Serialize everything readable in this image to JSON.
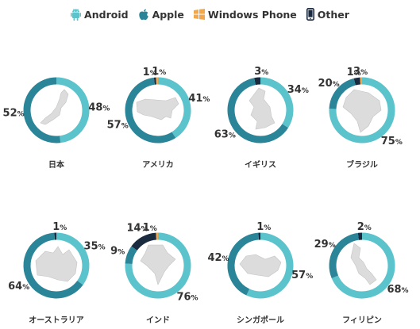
{
  "legend": [
    {
      "name": "Android",
      "color": "#5bc3cc",
      "icon": "android-icon"
    },
    {
      "name": "Apple",
      "color": "#2a8599",
      "icon": "apple-icon"
    },
    {
      "name": "Windows Phone",
      "color": "#f2a74b",
      "icon": "windows-icon"
    },
    {
      "name": "Other",
      "color": "#1a2a3f",
      "icon": "phone-icon"
    }
  ],
  "chart_data": {
    "type": "pie",
    "variant": "donut",
    "series_names": [
      "Android",
      "Apple",
      "Windows Phone",
      "Other"
    ],
    "colors": [
      "#5bc3cc",
      "#2a8599",
      "#f2a74b",
      "#1a2a3f"
    ],
    "charts": [
      {
        "country": "日本",
        "values": [
          48,
          52,
          0,
          0
        ],
        "labels": [
          "48",
          "52",
          "",
          ""
        ]
      },
      {
        "country": "アメリカ",
        "values": [
          41,
          57,
          1,
          1
        ],
        "labels": [
          "41",
          "57",
          "1",
          "1"
        ]
      },
      {
        "country": "イギリス",
        "values": [
          34,
          63,
          0,
          3
        ],
        "labels": [
          "34",
          "63",
          "",
          "3"
        ]
      },
      {
        "country": "ブラジル",
        "values": [
          75,
          20,
          1,
          3
        ],
        "labels": [
          "75",
          "20",
          "1",
          "3"
        ]
      },
      {
        "country": "オーストラリア",
        "values": [
          35,
          64,
          0,
          1
        ],
        "labels": [
          "35",
          "64",
          "",
          "1"
        ]
      },
      {
        "country": "インド",
        "values": [
          76,
          9,
          1,
          14
        ],
        "labels": [
          "76",
          "9",
          "1",
          "14"
        ]
      },
      {
        "country": "シンガポール",
        "values": [
          57,
          42,
          0,
          1
        ],
        "labels": [
          "57",
          "42",
          "",
          "1"
        ]
      },
      {
        "country": "フィリピン",
        "values": [
          68,
          29,
          0,
          2
        ],
        "labels": [
          "68",
          "29",
          "",
          "2"
        ]
      }
    ],
    "percent_sign": "%"
  }
}
